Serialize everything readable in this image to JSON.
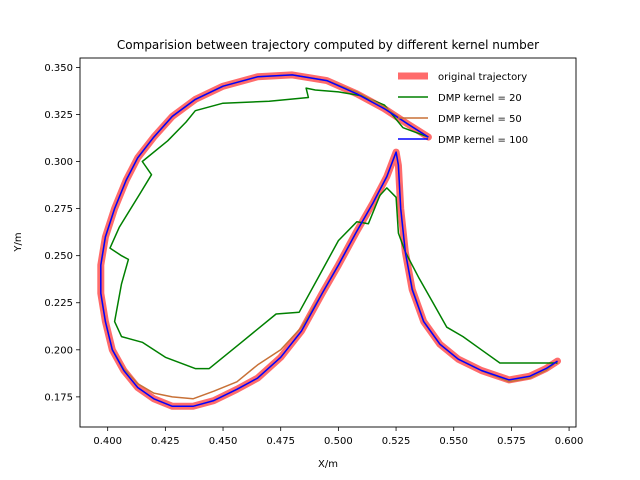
{
  "chart_data": {
    "type": "line",
    "title": "Comparision between trajectory computed by different kernel number",
    "xlabel": "X/m",
    "ylabel": "Y/m",
    "xlim": [
      0.388,
      0.603
    ],
    "ylim": [
      0.159,
      0.355
    ],
    "xticks": [
      0.4,
      0.425,
      0.45,
      0.475,
      0.5,
      0.525,
      0.55,
      0.575,
      0.6
    ],
    "xtick_labels": [
      "0.400",
      "0.425",
      "0.450",
      "0.475",
      "0.500",
      "0.525",
      "0.550",
      "0.575",
      "0.600"
    ],
    "yticks": [
      0.175,
      0.2,
      0.225,
      0.25,
      0.275,
      0.3,
      0.325,
      0.35
    ],
    "ytick_labels": [
      "0.175",
      "0.200",
      "0.225",
      "0.250",
      "0.275",
      "0.300",
      "0.325",
      "0.350"
    ],
    "grid": false,
    "legend_position": "top-right",
    "series": [
      {
        "name": "original trajectory",
        "color": "#ff6b6b",
        "style": "thick",
        "points": [
          [
            0.539,
            0.313
          ],
          [
            0.53,
            0.32
          ],
          [
            0.52,
            0.328
          ],
          [
            0.508,
            0.336
          ],
          [
            0.495,
            0.343
          ],
          [
            0.48,
            0.346
          ],
          [
            0.465,
            0.345
          ],
          [
            0.45,
            0.34
          ],
          [
            0.438,
            0.333
          ],
          [
            0.428,
            0.324
          ],
          [
            0.42,
            0.313
          ],
          [
            0.413,
            0.302
          ],
          [
            0.408,
            0.29
          ],
          [
            0.403,
            0.275
          ],
          [
            0.399,
            0.26
          ],
          [
            0.397,
            0.245
          ],
          [
            0.397,
            0.23
          ],
          [
            0.399,
            0.215
          ],
          [
            0.402,
            0.2
          ],
          [
            0.407,
            0.189
          ],
          [
            0.413,
            0.18
          ],
          [
            0.42,
            0.174
          ],
          [
            0.428,
            0.17
          ],
          [
            0.437,
            0.17
          ],
          [
            0.446,
            0.173
          ],
          [
            0.456,
            0.179
          ],
          [
            0.465,
            0.185
          ],
          [
            0.475,
            0.196
          ],
          [
            0.484,
            0.21
          ],
          [
            0.493,
            0.23
          ],
          [
            0.5,
            0.245
          ],
          [
            0.508,
            0.263
          ],
          [
            0.515,
            0.278
          ],
          [
            0.521,
            0.292
          ],
          [
            0.525,
            0.305
          ],
          [
            0.526,
            0.298
          ],
          [
            0.527,
            0.275
          ],
          [
            0.529,
            0.252
          ],
          [
            0.532,
            0.232
          ],
          [
            0.537,
            0.215
          ],
          [
            0.544,
            0.203
          ],
          [
            0.552,
            0.195
          ],
          [
            0.562,
            0.189
          ],
          [
            0.574,
            0.184
          ],
          [
            0.583,
            0.186
          ],
          [
            0.59,
            0.19
          ],
          [
            0.595,
            0.194
          ]
        ]
      },
      {
        "name": "DMP kernel = 20",
        "color": "#008000",
        "style": "thin",
        "points": [
          [
            0.539,
            0.313
          ],
          [
            0.528,
            0.318
          ],
          [
            0.52,
            0.33
          ],
          [
            0.51,
            0.335
          ],
          [
            0.5,
            0.337
          ],
          [
            0.49,
            0.338
          ],
          [
            0.486,
            0.339
          ],
          [
            0.487,
            0.334
          ],
          [
            0.47,
            0.332
          ],
          [
            0.45,
            0.331
          ],
          [
            0.438,
            0.327
          ],
          [
            0.434,
            0.321
          ],
          [
            0.426,
            0.311
          ],
          [
            0.415,
            0.3
          ],
          [
            0.419,
            0.293
          ],
          [
            0.414,
            0.283
          ],
          [
            0.405,
            0.265
          ],
          [
            0.401,
            0.254
          ],
          [
            0.406,
            0.25
          ],
          [
            0.409,
            0.248
          ],
          [
            0.406,
            0.235
          ],
          [
            0.403,
            0.215
          ],
          [
            0.406,
            0.207
          ],
          [
            0.415,
            0.204
          ],
          [
            0.425,
            0.196
          ],
          [
            0.438,
            0.19
          ],
          [
            0.444,
            0.19
          ],
          [
            0.458,
            0.204
          ],
          [
            0.473,
            0.219
          ],
          [
            0.483,
            0.22
          ],
          [
            0.492,
            0.24
          ],
          [
            0.5,
            0.258
          ],
          [
            0.508,
            0.268
          ],
          [
            0.513,
            0.267
          ],
          [
            0.518,
            0.282
          ],
          [
            0.521,
            0.286
          ],
          [
            0.525,
            0.281
          ],
          [
            0.526,
            0.262
          ],
          [
            0.529,
            0.252
          ],
          [
            0.535,
            0.238
          ],
          [
            0.541,
            0.225
          ],
          [
            0.547,
            0.212
          ],
          [
            0.554,
            0.207
          ],
          [
            0.562,
            0.2
          ],
          [
            0.57,
            0.193
          ],
          [
            0.58,
            0.193
          ],
          [
            0.59,
            0.193
          ],
          [
            0.595,
            0.193
          ]
        ]
      },
      {
        "name": "DMP kernel = 50",
        "color": "#c87137",
        "style": "thin",
        "points": [
          [
            0.539,
            0.313
          ],
          [
            0.53,
            0.32
          ],
          [
            0.52,
            0.329
          ],
          [
            0.508,
            0.337
          ],
          [
            0.495,
            0.343
          ],
          [
            0.48,
            0.346
          ],
          [
            0.465,
            0.345
          ],
          [
            0.45,
            0.34
          ],
          [
            0.438,
            0.333
          ],
          [
            0.428,
            0.324
          ],
          [
            0.42,
            0.313
          ],
          [
            0.413,
            0.302
          ],
          [
            0.408,
            0.29
          ],
          [
            0.403,
            0.275
          ],
          [
            0.399,
            0.26
          ],
          [
            0.397,
            0.245
          ],
          [
            0.397,
            0.23
          ],
          [
            0.399,
            0.215
          ],
          [
            0.402,
            0.2
          ],
          [
            0.407,
            0.19
          ],
          [
            0.413,
            0.182
          ],
          [
            0.42,
            0.177
          ],
          [
            0.428,
            0.175
          ],
          [
            0.437,
            0.174
          ],
          [
            0.446,
            0.178
          ],
          [
            0.456,
            0.183
          ],
          [
            0.465,
            0.192
          ],
          [
            0.475,
            0.2
          ],
          [
            0.484,
            0.212
          ],
          [
            0.493,
            0.23
          ],
          [
            0.5,
            0.245
          ],
          [
            0.508,
            0.263
          ],
          [
            0.515,
            0.278
          ],
          [
            0.521,
            0.292
          ],
          [
            0.525,
            0.305
          ],
          [
            0.526,
            0.298
          ],
          [
            0.527,
            0.275
          ],
          [
            0.529,
            0.252
          ],
          [
            0.532,
            0.233
          ],
          [
            0.537,
            0.215
          ],
          [
            0.544,
            0.203
          ],
          [
            0.552,
            0.195
          ],
          [
            0.562,
            0.189
          ],
          [
            0.574,
            0.183
          ],
          [
            0.583,
            0.185
          ],
          [
            0.59,
            0.189
          ],
          [
            0.595,
            0.194
          ]
        ]
      },
      {
        "name": "DMP kernel = 100",
        "color": "#0000ff",
        "style": "thin",
        "points": [
          [
            0.539,
            0.313
          ],
          [
            0.53,
            0.32
          ],
          [
            0.52,
            0.328
          ],
          [
            0.508,
            0.336
          ],
          [
            0.495,
            0.343
          ],
          [
            0.48,
            0.346
          ],
          [
            0.465,
            0.345
          ],
          [
            0.45,
            0.34
          ],
          [
            0.438,
            0.333
          ],
          [
            0.428,
            0.324
          ],
          [
            0.42,
            0.313
          ],
          [
            0.413,
            0.302
          ],
          [
            0.408,
            0.29
          ],
          [
            0.403,
            0.275
          ],
          [
            0.399,
            0.26
          ],
          [
            0.397,
            0.245
          ],
          [
            0.397,
            0.23
          ],
          [
            0.399,
            0.215
          ],
          [
            0.402,
            0.2
          ],
          [
            0.407,
            0.189
          ],
          [
            0.413,
            0.18
          ],
          [
            0.42,
            0.174
          ],
          [
            0.428,
            0.17
          ],
          [
            0.437,
            0.17
          ],
          [
            0.446,
            0.173
          ],
          [
            0.456,
            0.179
          ],
          [
            0.465,
            0.185
          ],
          [
            0.475,
            0.196
          ],
          [
            0.484,
            0.21
          ],
          [
            0.493,
            0.23
          ],
          [
            0.5,
            0.245
          ],
          [
            0.508,
            0.263
          ],
          [
            0.515,
            0.278
          ],
          [
            0.521,
            0.292
          ],
          [
            0.525,
            0.305
          ],
          [
            0.526,
            0.298
          ],
          [
            0.527,
            0.275
          ],
          [
            0.529,
            0.252
          ],
          [
            0.532,
            0.232
          ],
          [
            0.537,
            0.215
          ],
          [
            0.544,
            0.203
          ],
          [
            0.552,
            0.195
          ],
          [
            0.562,
            0.189
          ],
          [
            0.574,
            0.184
          ],
          [
            0.583,
            0.186
          ],
          [
            0.59,
            0.19
          ],
          [
            0.595,
            0.194
          ]
        ]
      }
    ]
  }
}
